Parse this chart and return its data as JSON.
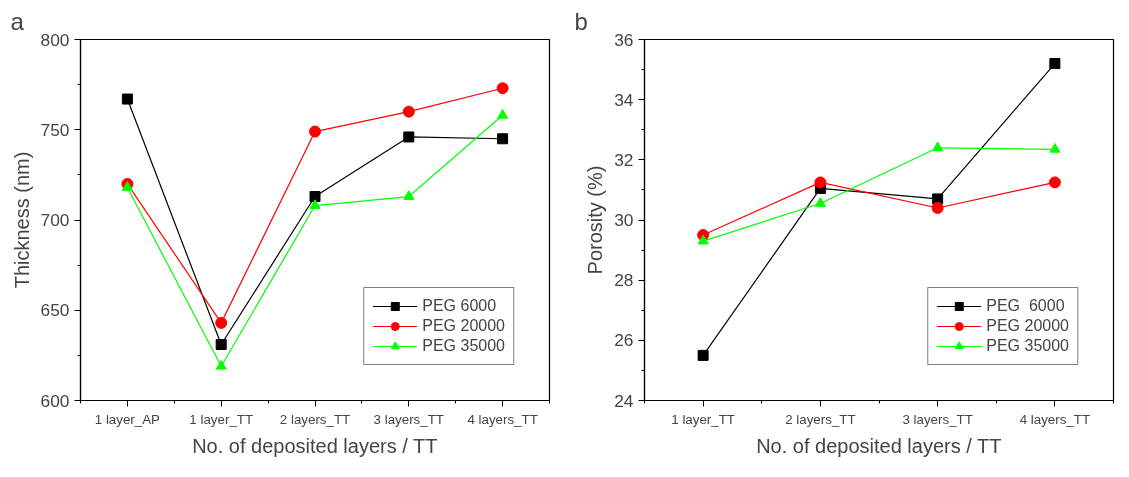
{
  "chart_data": [
    {
      "type": "line",
      "annotations": [
        "a"
      ],
      "xlabel": "No. of deposited layers / TT",
      "ylabel": "Thickness (nm)",
      "categories": [
        "1 layer_AP",
        "1 layer_TT",
        "2 layers_TT",
        "3 layers_TT",
        "4 layers_TT"
      ],
      "series": [
        {
          "name": "PEG 6000",
          "color": "#000000",
          "marker": "square",
          "values": [
            767,
            631,
            713,
            746,
            745
          ]
        },
        {
          "name": "PEG 20000",
          "color": "#ff0000",
          "marker": "circle",
          "values": [
            720,
            643,
            749,
            760,
            773
          ]
        },
        {
          "name": "PEG 35000",
          "color": "#00ff00",
          "marker": "triangle",
          "values": [
            718,
            619,
            708,
            713,
            758
          ]
        }
      ],
      "ylim": [
        600,
        800
      ],
      "yticks": [
        600,
        {
          "value": 625,
          "label": null
        },
        650,
        {
          "value": 675,
          "label": null
        },
        700,
        {
          "value": 725,
          "label": null
        },
        750,
        {
          "value": 775,
          "label": null
        },
        800
      ],
      "grid": false,
      "legend": "bottom right",
      "line_style": "solid"
    },
    {
      "type": "line",
      "annotations": [
        "b"
      ],
      "xlabel": "No. of deposited layers / TT",
      "ylabel": "Porosity (%)",
      "categories": [
        "1 layer_TT",
        "2 layers_TT",
        "3 layers_TT",
        "4 layers_TT"
      ],
      "series": [
        {
          "name": "PEG  6000",
          "color": "#000000",
          "marker": "square",
          "values": [
            25.5,
            31.05,
            30.7,
            35.2
          ]
        },
        {
          "name": "PEG 20000",
          "color": "#ff0000",
          "marker": "circle",
          "values": [
            29.5,
            31.25,
            30.4,
            31.25
          ]
        },
        {
          "name": "PEG 35000",
          "color": "#00ff00",
          "marker": "triangle",
          "values": [
            29.3,
            30.55,
            32.4,
            32.35
          ]
        }
      ],
      "ylim": [
        24,
        36
      ],
      "yticks": [
        24,
        {
          "value": 25,
          "label": null
        },
        26,
        {
          "value": 27,
          "label": null
        },
        28,
        {
          "value": 29,
          "label": null
        },
        30,
        {
          "value": 31,
          "label": null
        },
        32,
        {
          "value": 33,
          "label": null
        },
        34,
        {
          "value": 35,
          "label": null
        },
        36
      ],
      "grid": false,
      "legend": "bottom right",
      "line_style": "solid"
    }
  ]
}
